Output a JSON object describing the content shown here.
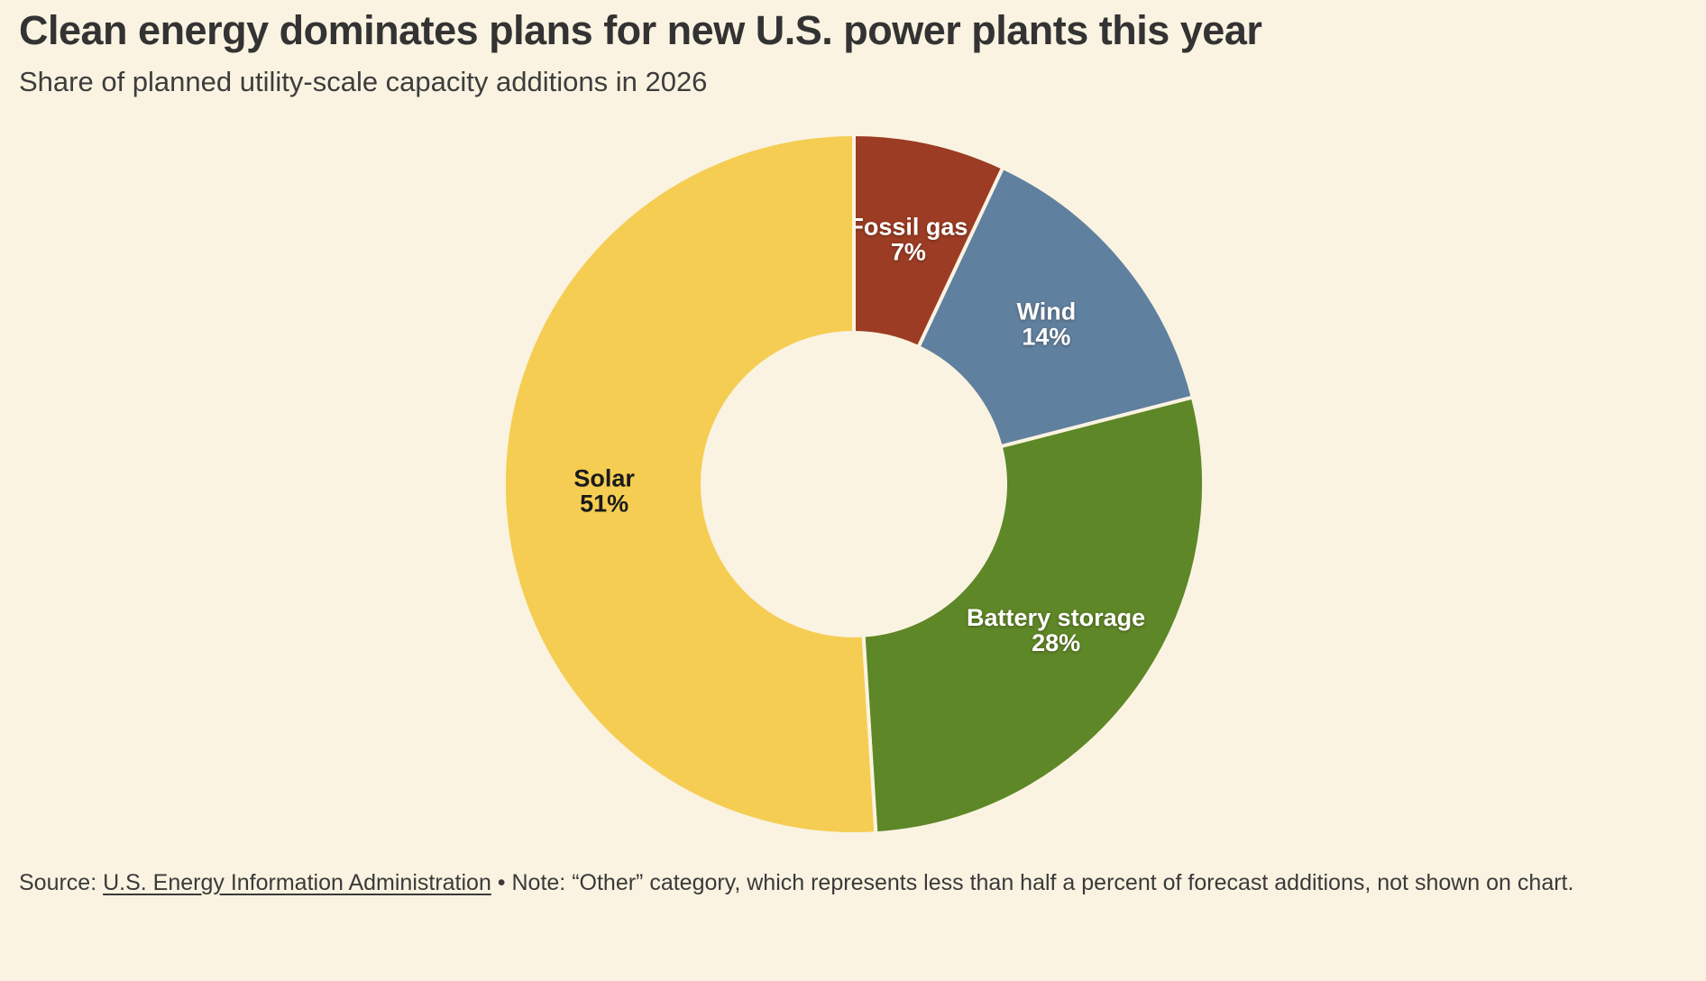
{
  "header": {
    "title": "Clean energy dominates plans for new U.S. power plants this year",
    "subtitle": "Share of planned utility-scale capacity additions in 2026"
  },
  "chart_data": {
    "type": "pie",
    "subtype": "donut",
    "title": "Clean energy dominates plans for new U.S. power plants this year",
    "subtitle": "Share of planned utility-scale capacity additions in 2026",
    "unit": "%",
    "direction": "clockwise",
    "start_angle_deg": 0,
    "slices": [
      {
        "label": "Fossil gas",
        "value": 7,
        "display": "7%",
        "color": "#9c3c24",
        "label_color": "#ffffff"
      },
      {
        "label": "Wind",
        "value": 14,
        "display": "14%",
        "color": "#60809f",
        "label_color": "#ffffff"
      },
      {
        "label": "Battery storage",
        "value": 28,
        "display": "28%",
        "color": "#5e8727",
        "label_color": "#ffffff"
      },
      {
        "label": "Solar",
        "value": 51,
        "display": "51%",
        "color": "#f5cd52",
        "label_color": "#1a1a1a"
      }
    ]
  },
  "footer": {
    "source_prefix": "Source: ",
    "source_link": "U.S. Energy Information Administration",
    "note": " • Note: “Other” category, which represents less than half a percent of forecast additions, not shown on chart."
  },
  "colors": {
    "background": "#faf3e1",
    "title_text": "#333333",
    "body_text": "#3d3d3d"
  }
}
